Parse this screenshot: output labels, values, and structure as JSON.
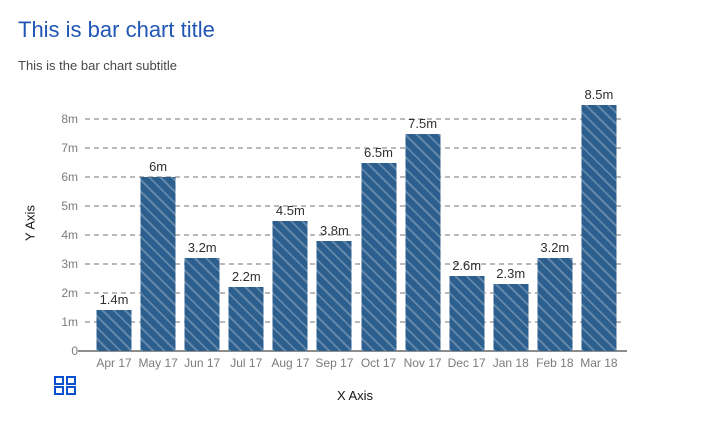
{
  "chart_data": {
    "type": "bar",
    "title": "This is bar chart title",
    "subtitle": "This is the bar chart subtitle",
    "xlabel": "X Axis",
    "ylabel": "Y Axis",
    "categories": [
      "Apr 17",
      "May 17",
      "Jun 17",
      "Jul 17",
      "Aug 17",
      "Sep 17",
      "Oct 17",
      "Nov 17",
      "Dec 17",
      "Jan 18",
      "Feb 18",
      "Mar 18"
    ],
    "values": [
      1.4,
      6,
      3.2,
      2.2,
      4.5,
      3.8,
      6.5,
      7.5,
      2.6,
      2.3,
      3.2,
      8.5
    ],
    "value_labels": [
      "1.4m",
      "6m",
      "3.2m",
      "2.2m",
      "4.5m",
      "3.8m",
      "6.5m",
      "7.5m",
      "2.6m",
      "2.3m",
      "3.2m",
      "8.5m"
    ],
    "unit": "m",
    "ytick_values": [
      0,
      1,
      2,
      3,
      4,
      5,
      6,
      7,
      8
    ],
    "ytick_labels": [
      "0",
      "1m",
      "2m",
      "3m",
      "4m",
      "5m",
      "6m",
      "7m",
      "8m"
    ],
    "ylim": [
      0,
      8.8
    ],
    "grid": "horizontal-dashed",
    "legend": "none",
    "bar_fill_color": "#2d5f8e",
    "bar_hatch": "diagonal-stripes",
    "hatch_color": "#5f8cb0"
  },
  "theme": {
    "title_color": "#2156b4",
    "subtitle_color": "#474747",
    "axis_title_color": "#141414",
    "tick_color": "#7b7b7b",
    "value_label_color": "#2f2f2f",
    "gridline_color": "#b9b9b9",
    "baseline_color": "#8d8d8d"
  },
  "footer": {
    "grid_icon": "grid-squares-icon",
    "icon_color": "#0b50d0"
  }
}
